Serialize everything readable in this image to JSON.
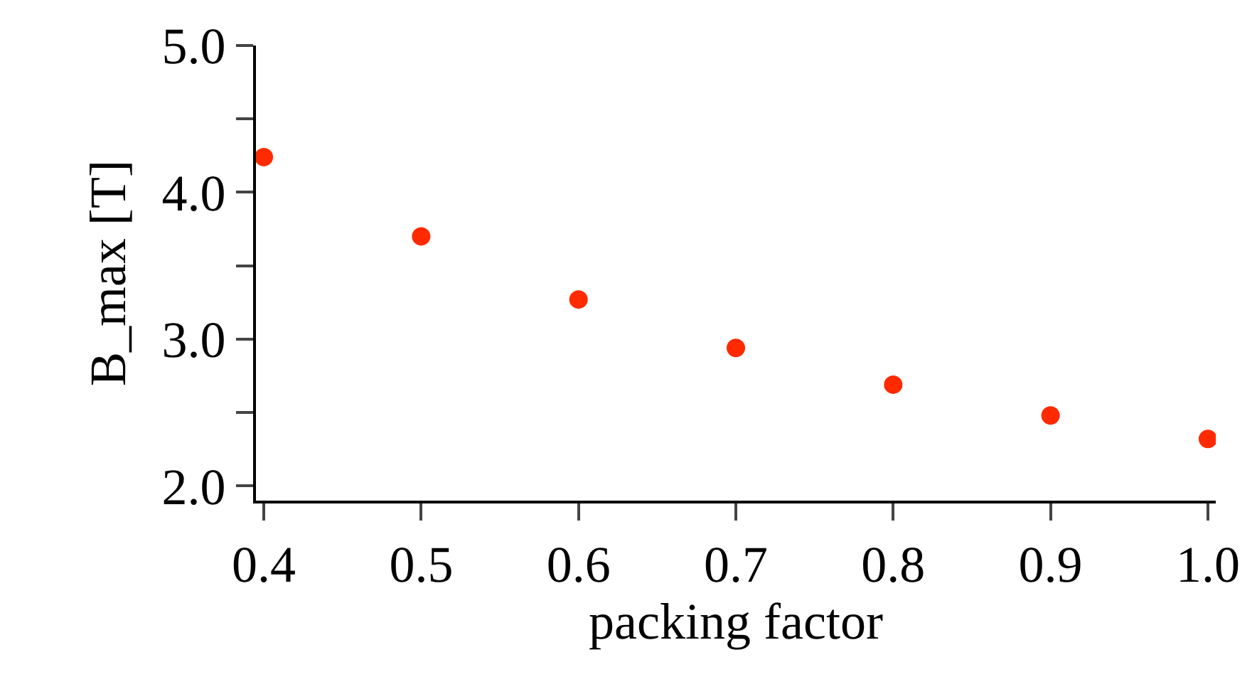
{
  "chart_data": {
    "type": "scatter",
    "xlabel": "packing factor",
    "ylabel": "B_max [T]",
    "x": [
      0.4,
      0.5,
      0.6,
      0.7,
      0.8,
      0.9,
      1.0
    ],
    "series": [
      {
        "color": "#ff2a00",
        "values": [
          4.24,
          3.7,
          3.27,
          2.94,
          2.69,
          2.48,
          2.32
        ]
      }
    ],
    "xlim": [
      0.395,
      1.005
    ],
    "xticks": [
      {
        "value": 0.4,
        "label": "0.4"
      },
      {
        "value": 0.5,
        "label": "0.5"
      },
      {
        "value": 0.6,
        "label": "0.6"
      },
      {
        "value": 0.7,
        "label": "0.7"
      },
      {
        "value": 0.8,
        "label": "0.8"
      },
      {
        "value": 0.9,
        "label": "0.9"
      },
      {
        "value": 1.0,
        "label": "1.0"
      }
    ],
    "ylim": [
      1.9,
      5.0
    ],
    "yticks": [
      {
        "value": 2,
        "label": "2.0"
      },
      {
        "value": 2.5,
        "label": null
      },
      {
        "value": 3,
        "label": "3.0"
      },
      {
        "value": 3.5,
        "label": null
      },
      {
        "value": 4,
        "label": "4.0"
      },
      {
        "value": 4.5,
        "label": null
      },
      {
        "value": 5,
        "label": "5.0"
      }
    ],
    "grid": false,
    "marker": "circle"
  }
}
